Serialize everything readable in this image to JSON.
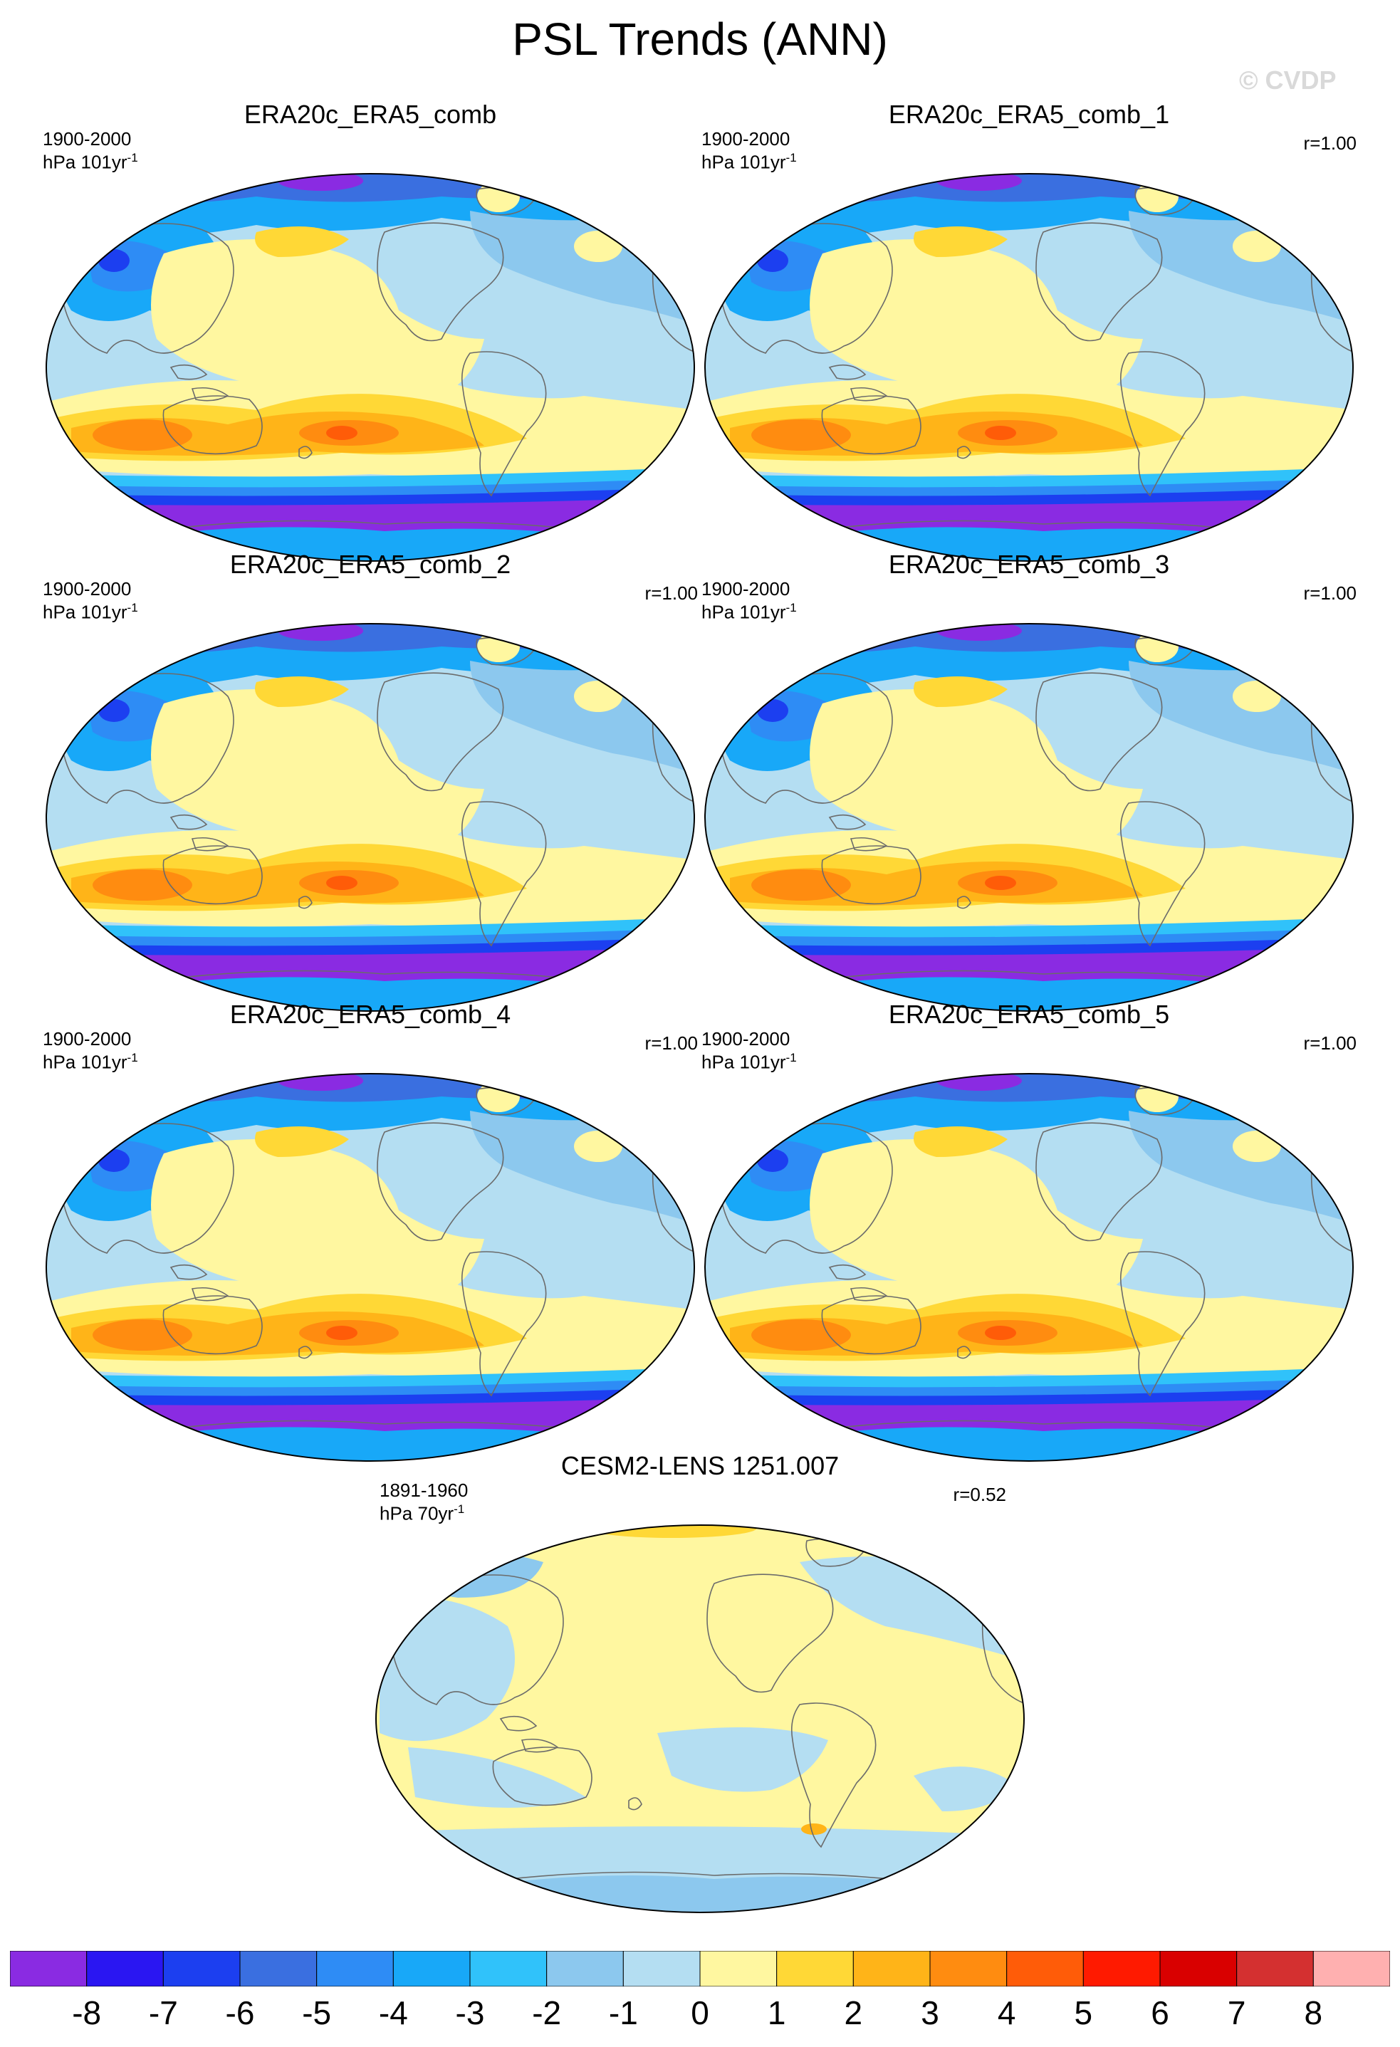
{
  "title": "PSL Trends (ANN)",
  "watermark": "© CVDP",
  "panels": [
    {
      "title": "ERA20c_ERA5_comb",
      "period": "1900-2000",
      "units_prefix": "hPa 101yr",
      "units_exp": "-1",
      "corr": "",
      "pattern": "era"
    },
    {
      "title": "ERA20c_ERA5_comb_1",
      "period": "1900-2000",
      "units_prefix": "hPa 101yr",
      "units_exp": "-1",
      "corr": "r=1.00",
      "pattern": "era"
    },
    {
      "title": "ERA20c_ERA5_comb_2",
      "period": "1900-2000",
      "units_prefix": "hPa 101yr",
      "units_exp": "-1",
      "corr": "r=1.00",
      "pattern": "era"
    },
    {
      "title": "ERA20c_ERA5_comb_3",
      "period": "1900-2000",
      "units_prefix": "hPa 101yr",
      "units_exp": "-1",
      "corr": "r=1.00",
      "pattern": "era"
    },
    {
      "title": "ERA20c_ERA5_comb_4",
      "period": "1900-2000",
      "units_prefix": "hPa 101yr",
      "units_exp": "-1",
      "corr": "r=1.00",
      "pattern": "era"
    },
    {
      "title": "ERA20c_ERA5_comb_5",
      "period": "1900-2000",
      "units_prefix": "hPa 101yr",
      "units_exp": "-1",
      "corr": "r=1.00",
      "pattern": "era"
    },
    {
      "title": "CESM2-LENS 1251.007",
      "period": "1891-1960",
      "units_prefix": "hPa 70yr",
      "units_exp": "-1",
      "corr": "r=0.52",
      "pattern": "cesm"
    }
  ],
  "colorbar": {
    "colors": [
      "#8a2be2",
      "#2a16f2",
      "#1c3ff0",
      "#3a6fe0",
      "#2e8cf5",
      "#18a8f8",
      "#30c2fa",
      "#8cc8ee",
      "#b4def2",
      "#fff7a0",
      "#ffd836",
      "#ffb418",
      "#ff8c10",
      "#ff5c08",
      "#ff1a00",
      "#d90000",
      "#d43030",
      "#ffb0b0"
    ],
    "labels": [
      "-8",
      "-7",
      "-6",
      "-5",
      "-4",
      "-3",
      "-2",
      "-1",
      "0",
      "1",
      "2",
      "3",
      "4",
      "5",
      "6",
      "7",
      "8"
    ]
  },
  "map_colors": {
    "ocean": "#b4def2",
    "land_outline": "#6b6b6b",
    "border": "#000000"
  }
}
